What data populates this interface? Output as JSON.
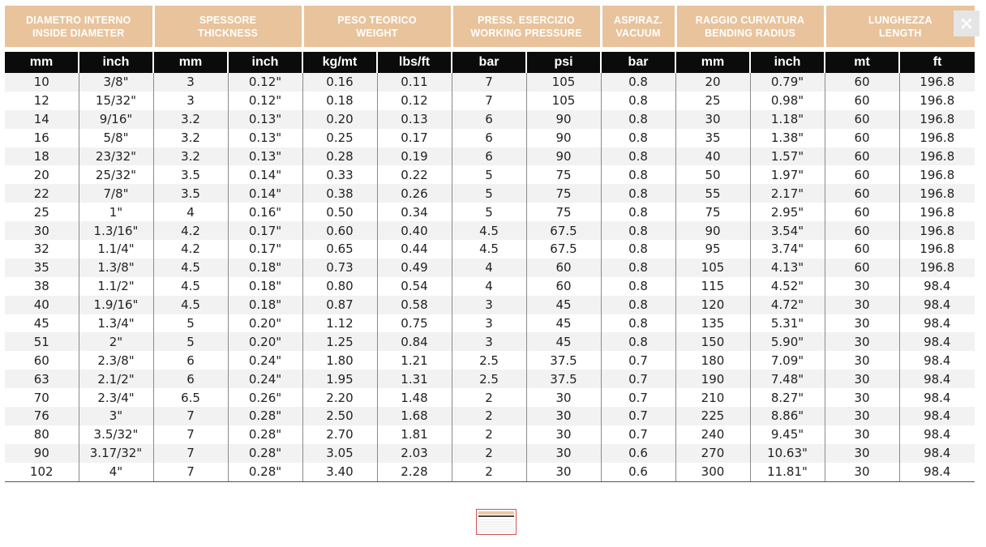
{
  "groups": [
    {
      "it": "DIAMETRO INTERNO",
      "en": "INSIDE DIAMETER"
    },
    {
      "it": "SPESSORE",
      "en": "THICKNESS"
    },
    {
      "it": "PESO TEORICO",
      "en": "WEIGHT"
    },
    {
      "it": "PRESS. ESERCIZIO",
      "en": "WORKING PRESSURE"
    },
    {
      "it": "ASPIRAZ.",
      "en": "VACUUM"
    },
    {
      "it": "RAGGIO CURVATURA",
      "en": "BENDING RADIUS"
    },
    {
      "it": "LUNGHEZZA",
      "en": "LENGTH"
    }
  ],
  "units": [
    "mm",
    "inch",
    "mm",
    "inch",
    "kg/mt",
    "lbs/ft",
    "bar",
    "psi",
    "bar",
    "mm",
    "inch",
    "mt",
    "ft"
  ],
  "rows": [
    [
      "10",
      "3/8\"",
      "3",
      "0.12\"",
      "0.16",
      "0.11",
      "7",
      "105",
      "0.8",
      "20",
      "0.79\"",
      "60",
      "196.8"
    ],
    [
      "12",
      "15/32\"",
      "3",
      "0.12\"",
      "0.18",
      "0.12",
      "7",
      "105",
      "0.8",
      "25",
      "0.98\"",
      "60",
      "196.8"
    ],
    [
      "14",
      "9/16\"",
      "3.2",
      "0.13\"",
      "0.20",
      "0.13",
      "6",
      "90",
      "0.8",
      "30",
      "1.18\"",
      "60",
      "196.8"
    ],
    [
      "16",
      "5/8\"",
      "3.2",
      "0.13\"",
      "0.25",
      "0.17",
      "6",
      "90",
      "0.8",
      "35",
      "1.38\"",
      "60",
      "196.8"
    ],
    [
      "18",
      "23/32\"",
      "3.2",
      "0.13\"",
      "0.28",
      "0.19",
      "6",
      "90",
      "0.8",
      "40",
      "1.57\"",
      "60",
      "196.8"
    ],
    [
      "20",
      "25/32\"",
      "3.5",
      "0.14\"",
      "0.33",
      "0.22",
      "5",
      "75",
      "0.8",
      "50",
      "1.97\"",
      "60",
      "196.8"
    ],
    [
      "22",
      "7/8\"",
      "3.5",
      "0.14\"",
      "0.38",
      "0.26",
      "5",
      "75",
      "0.8",
      "55",
      "2.17\"",
      "60",
      "196.8"
    ],
    [
      "25",
      "1\"",
      "4",
      "0.16\"",
      "0.50",
      "0.34",
      "5",
      "75",
      "0.8",
      "75",
      "2.95\"",
      "60",
      "196.8"
    ],
    [
      "30",
      "1.3/16\"",
      "4.2",
      "0.17\"",
      "0.60",
      "0.40",
      "4.5",
      "67.5",
      "0.8",
      "90",
      "3.54\"",
      "60",
      "196.8"
    ],
    [
      "32",
      "1.1/4\"",
      "4.2",
      "0.17\"",
      "0.65",
      "0.44",
      "4.5",
      "67.5",
      "0.8",
      "95",
      "3.74\"",
      "60",
      "196.8"
    ],
    [
      "35",
      "1.3/8\"",
      "4.5",
      "0.18\"",
      "0.73",
      "0.49",
      "4",
      "60",
      "0.8",
      "105",
      "4.13\"",
      "60",
      "196.8"
    ],
    [
      "38",
      "1.1/2\"",
      "4.5",
      "0.18\"",
      "0.80",
      "0.54",
      "4",
      "60",
      "0.8",
      "115",
      "4.52\"",
      "30",
      "98.4"
    ],
    [
      "40",
      "1.9/16\"",
      "4.5",
      "0.18\"",
      "0.87",
      "0.58",
      "3",
      "45",
      "0.8",
      "120",
      "4.72\"",
      "30",
      "98.4"
    ],
    [
      "45",
      "1.3/4\"",
      "5",
      "0.20\"",
      "1.12",
      "0.75",
      "3",
      "45",
      "0.8",
      "135",
      "5.31\"",
      "30",
      "98.4"
    ],
    [
      "51",
      "2\"",
      "5",
      "0.20\"",
      "1.25",
      "0.84",
      "3",
      "45",
      "0.8",
      "150",
      "5.90\"",
      "30",
      "98.4"
    ],
    [
      "60",
      "2.3/8\"",
      "6",
      "0.24\"",
      "1.80",
      "1.21",
      "2.5",
      "37.5",
      "0.7",
      "180",
      "7.09\"",
      "30",
      "98.4"
    ],
    [
      "63",
      "2.1/2\"",
      "6",
      "0.24\"",
      "1.95",
      "1.31",
      "2.5",
      "37.5",
      "0.7",
      "190",
      "7.48\"",
      "30",
      "98.4"
    ],
    [
      "70",
      "2.3/4\"",
      "6.5",
      "0.26\"",
      "2.20",
      "1.48",
      "2",
      "30",
      "0.7",
      "210",
      "8.27\"",
      "30",
      "98.4"
    ],
    [
      "76",
      "3\"",
      "7",
      "0.28\"",
      "2.50",
      "1.68",
      "2",
      "30",
      "0.7",
      "225",
      "8.86\"",
      "30",
      "98.4"
    ],
    [
      "80",
      "3.5/32\"",
      "7",
      "0.28\"",
      "2.70",
      "1.81",
      "2",
      "30",
      "0.7",
      "240",
      "9.45\"",
      "30",
      "98.4"
    ],
    [
      "90",
      "3.17/32\"",
      "7",
      "0.28\"",
      "3.05",
      "2.03",
      "2",
      "30",
      "0.6",
      "270",
      "10.63\"",
      "30",
      "98.4"
    ],
    [
      "102",
      "4\"",
      "7",
      "0.28\"",
      "3.40",
      "2.28",
      "2",
      "30",
      "0.6",
      "300",
      "11.81\"",
      "30",
      "98.4"
    ]
  ],
  "expand_button": {
    "icon": "expand-icon"
  },
  "colors": {
    "group_header": "#e8c39c",
    "unit_header": "#0b0b0b",
    "stripe": "#f2f2f2"
  }
}
